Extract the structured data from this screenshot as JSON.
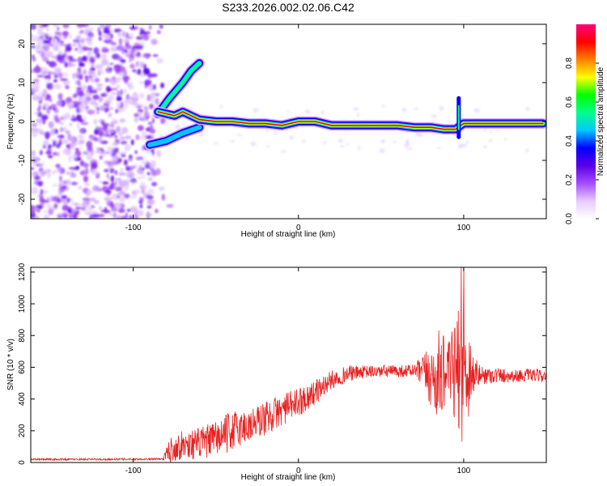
{
  "title": "S233.2026.002.02.06.C42",
  "chart_data": [
    {
      "type": "heatmap",
      "xlabel": "Height of straight line (km)",
      "ylabel": "Frequency (Hz)",
      "xlim": [
        -162,
        150
      ],
      "ylim": [
        -25,
        25
      ],
      "xticks": [
        -100,
        0,
        100
      ],
      "yticks": [
        -20,
        -10,
        0,
        10,
        20
      ],
      "colorbar": {
        "label": "Normalized spectral amplitude",
        "range": [
          0,
          1
        ],
        "ticks": [
          "0.0",
          "0.2",
          "0.4",
          "0.6",
          "0.8"
        ],
        "colors": [
          "#ffffff",
          "#e6ccff",
          "#a64dff",
          "#5a00e6",
          "#0000ff",
          "#00c8ff",
          "#00ff8c",
          "#00ff00",
          "#ffff00",
          "#ff8000",
          "#ff0000",
          "#ff0080"
        ]
      },
      "features": {
        "noise_region_km": [
          -162,
          -87
        ],
        "main_ridge": [
          [
            -85,
            2.5
          ],
          [
            -80,
            2
          ],
          [
            -75,
            1.5
          ],
          [
            -70,
            2.5
          ],
          [
            -60,
            0.5
          ],
          [
            -50,
            0
          ],
          [
            -40,
            0
          ],
          [
            -30,
            -0.5
          ],
          [
            -20,
            -0.5
          ],
          [
            -10,
            -1
          ],
          [
            0,
            0
          ],
          [
            10,
            0
          ],
          [
            20,
            -1
          ],
          [
            40,
            -1
          ],
          [
            60,
            -1
          ],
          [
            70,
            -1.5
          ],
          [
            80,
            -1.5
          ],
          [
            88,
            -2
          ],
          [
            95,
            -2
          ],
          [
            100,
            -0.5
          ],
          [
            120,
            -0.5
          ],
          [
            148,
            -0.5
          ]
        ],
        "upper_branch": [
          [
            -85,
            2
          ],
          [
            -78,
            6
          ],
          [
            -70,
            10
          ],
          [
            -65,
            13
          ],
          [
            -60,
            15
          ]
        ],
        "lower_branch": [
          [
            -90,
            -6
          ],
          [
            -80,
            -5
          ],
          [
            -70,
            -3
          ],
          [
            -60,
            -1.5
          ]
        ]
      }
    },
    {
      "type": "line",
      "xlabel": "Height of straight line (km)",
      "ylabel": "SNR (10 * v/v)",
      "xlim": [
        -162,
        150
      ],
      "ylim": [
        0,
        1230
      ],
      "xticks": [
        -100,
        0,
        100
      ],
      "yticks": [
        0,
        200,
        400,
        600,
        800,
        1000,
        1200
      ],
      "color": "#e8201f",
      "envelope": {
        "x": [
          -162,
          -120,
          -82,
          -78,
          -70,
          -60,
          -50,
          -40,
          -30,
          -20,
          -10,
          0,
          10,
          20,
          30,
          40,
          50,
          60,
          70,
          78,
          82,
          86,
          90,
          95,
          98,
          100,
          102,
          105,
          110,
          120,
          130,
          140,
          150
        ],
        "y": [
          20,
          20,
          22,
          80,
          110,
          120,
          150,
          200,
          230,
          280,
          330,
          380,
          440,
          520,
          560,
          570,
          575,
          575,
          580,
          560,
          520,
          560,
          580,
          560,
          600,
          560,
          600,
          560,
          550,
          550,
          545,
          550,
          545
        ],
        "spread": [
          6,
          6,
          6,
          80,
          90,
          100,
          110,
          130,
          110,
          110,
          100,
          90,
          80,
          60,
          50,
          40,
          40,
          40,
          40,
          150,
          250,
          300,
          150,
          350,
          400,
          500,
          400,
          150,
          60,
          50,
          40,
          40,
          40
        ]
      }
    }
  ]
}
